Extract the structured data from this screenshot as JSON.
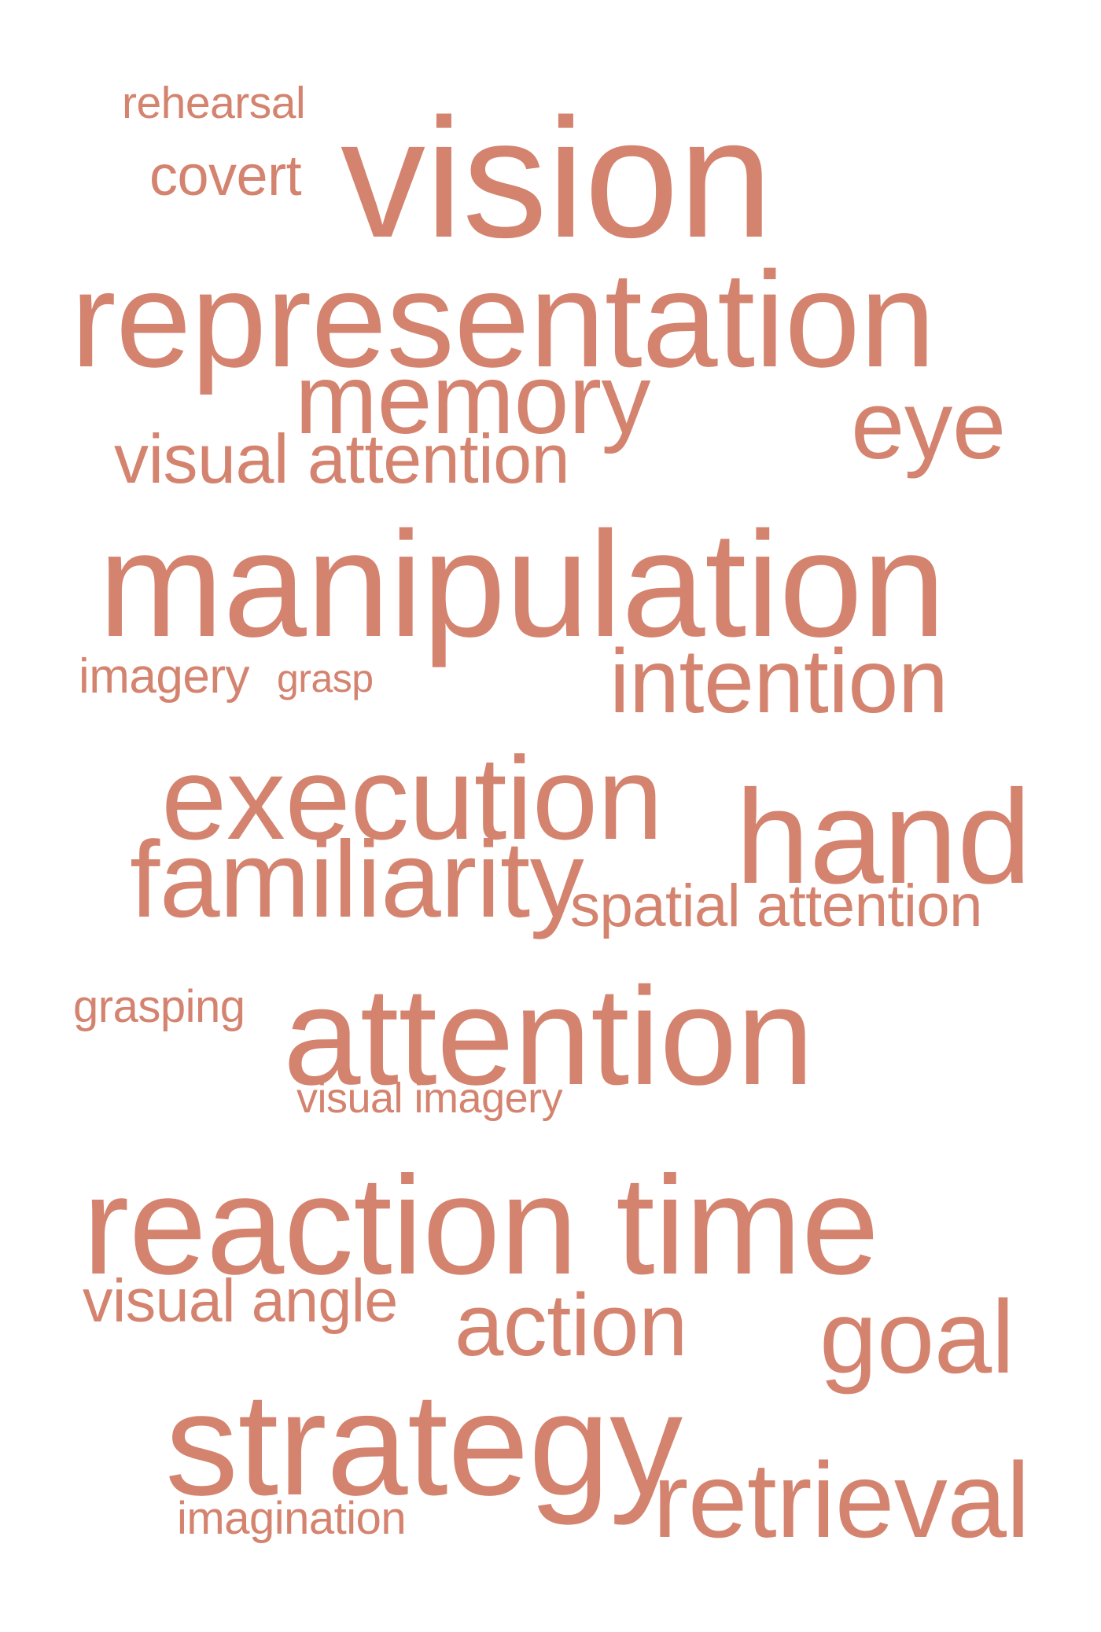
{
  "word_cloud": {
    "color": "#d4836f",
    "words": [
      {
        "text": "rehearsal"
      },
      {
        "text": "covert"
      },
      {
        "text": "vision"
      },
      {
        "text": "representation"
      },
      {
        "text": "memory"
      },
      {
        "text": "eye"
      },
      {
        "text": "visual attention"
      },
      {
        "text": "manipulation"
      },
      {
        "text": "imagery"
      },
      {
        "text": "grasp"
      },
      {
        "text": "intention"
      },
      {
        "text": "execution"
      },
      {
        "text": "hand"
      },
      {
        "text": "familiarity"
      },
      {
        "text": "spatial attention"
      },
      {
        "text": "grasping"
      },
      {
        "text": "attention"
      },
      {
        "text": "visual imagery"
      },
      {
        "text": "reaction time"
      },
      {
        "text": "visual angle"
      },
      {
        "text": "action"
      },
      {
        "text": "goal"
      },
      {
        "text": "strategy"
      },
      {
        "text": "retrieval"
      },
      {
        "text": "imagination"
      }
    ]
  }
}
